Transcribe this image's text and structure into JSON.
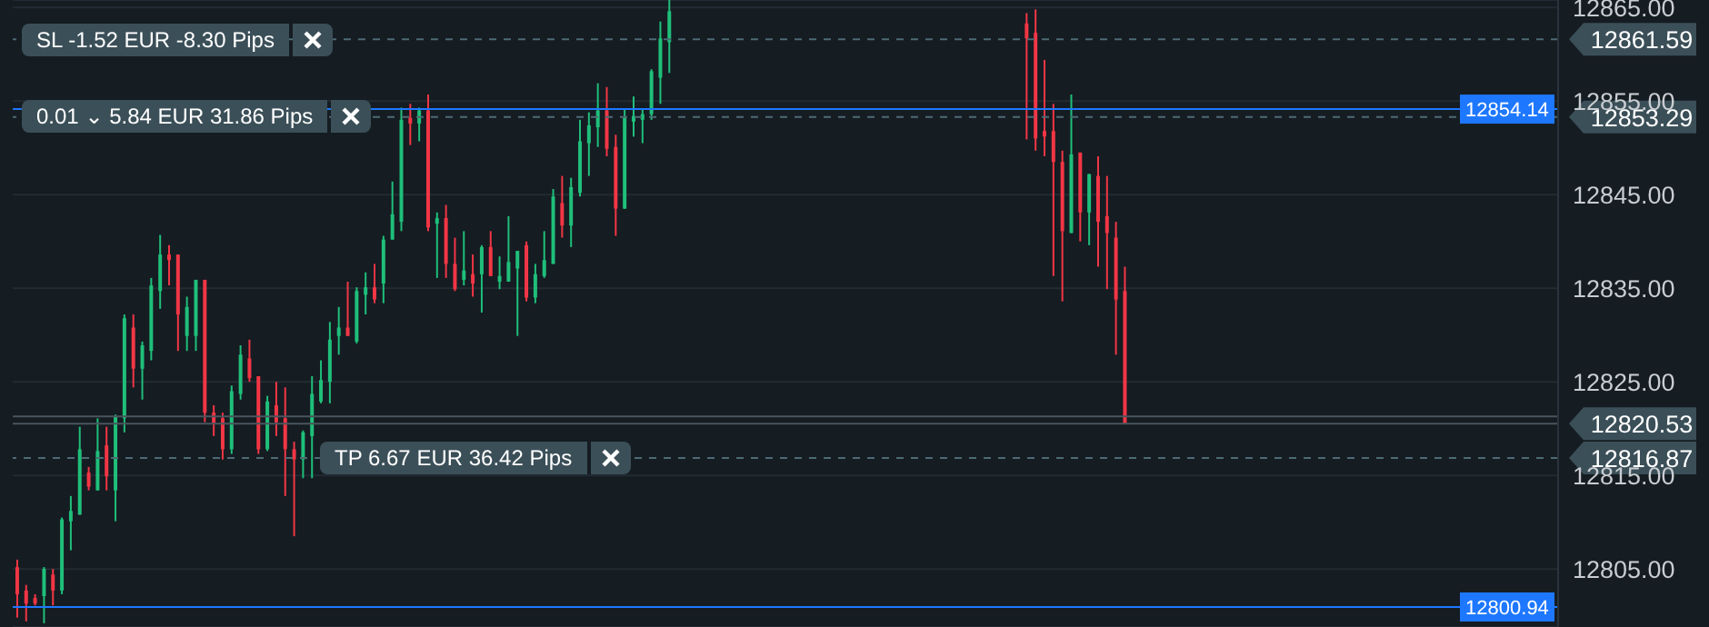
{
  "chart_data": {
    "type": "candlestick",
    "categories": [
      null,
      null,
      null,
      null,
      null,
      null,
      null,
      null,
      null,
      null,
      null,
      null,
      null,
      null,
      null,
      null,
      null,
      null,
      null,
      null,
      null,
      null,
      null,
      null,
      null,
      null,
      null,
      null,
      null,
      null,
      null,
      null,
      null,
      null,
      null,
      null,
      null,
      null,
      null,
      null,
      null,
      null,
      null,
      null,
      null,
      null,
      null,
      null,
      null,
      null,
      null,
      null,
      null,
      null,
      null,
      null,
      null,
      null,
      null,
      null,
      null,
      null,
      null,
      null,
      null,
      null,
      null,
      null,
      null,
      null,
      null,
      null,
      null,
      null,
      null,
      null,
      null,
      null,
      null,
      null,
      null,
      null,
      null,
      null,
      null,
      null,
      null,
      null,
      null,
      null,
      null,
      null,
      null,
      null,
      null,
      null,
      null,
      null,
      null,
      null,
      null,
      null,
      null,
      null,
      null,
      null,
      null,
      null,
      null,
      null,
      null,
      null,
      null,
      null,
      null,
      null,
      null,
      null,
      null,
      null,
      null,
      null,
      null,
      null,
      null,
      null,
      null,
      null,
      null,
      null,
      null,
      null,
      null,
      null,
      null,
      null,
      null,
      null,
      null,
      null,
      null,
      null,
      null,
      null,
      null,
      null,
      null,
      null,
      null,
      null,
      null,
      null,
      null,
      null,
      null,
      null,
      null,
      null,
      null,
      null,
      null,
      null,
      null,
      null,
      null,
      null,
      null,
      null,
      null,
      null,
      null,
      null,
      null
    ],
    "ohlc": [
      [
        12805.2,
        12806.0,
        12799.8,
        12802.3
      ],
      [
        12802.7,
        12803.3,
        12799.4,
        12801.3
      ],
      [
        12801.9,
        12802.3,
        12801.1,
        12801.3
      ],
      [
        12802.1,
        12805.2,
        12799.2,
        12805.0
      ],
      [
        12804.4,
        12805.0,
        12801.1,
        12802.7
      ],
      [
        12802.7,
        12810.5,
        12802.3,
        12810.3
      ],
      [
        12810.1,
        12812.8,
        12807.0,
        12811.2
      ],
      [
        12810.8,
        12820.2,
        12810.8,
        12817.8
      ],
      [
        12815.3,
        12815.9,
        12813.4,
        12813.8
      ],
      [
        12813.4,
        12821.1,
        12813.4,
        12817.6
      ],
      [
        12818.2,
        12820.2,
        12813.4,
        12814.9
      ],
      [
        12813.4,
        12821.5,
        12810.1,
        12821.3
      ],
      [
        12821.1,
        12832.2,
        12819.6,
        12831.8
      ],
      [
        12830.8,
        12832.2,
        12824.4,
        12826.4
      ],
      [
        12826.4,
        12829.3,
        12823.1,
        12828.9
      ],
      [
        12828.3,
        12836.1,
        12827.3,
        12835.3
      ],
      [
        12834.7,
        12840.7,
        12832.8,
        12838.6
      ],
      [
        12838.6,
        12839.6,
        12835.3,
        12838.0
      ],
      [
        12838.6,
        12838.6,
        12828.3,
        12832.2
      ],
      [
        12829.9,
        12834.1,
        12828.3,
        12833.0
      ],
      [
        12829.9,
        12835.9,
        12828.3,
        12835.9
      ],
      [
        12835.9,
        12835.9,
        12820.7,
        12821.7
      ],
      [
        12821.7,
        12822.5,
        12819.2,
        12820.6
      ],
      [
        12821.1,
        12821.7,
        12816.7,
        12817.8
      ],
      [
        12817.8,
        12824.6,
        12817.3,
        12824.0
      ],
      [
        12823.7,
        12828.9,
        12823.1,
        12827.9
      ],
      [
        12827.5,
        12829.5,
        12825.0,
        12825.4
      ],
      [
        12825.6,
        12825.6,
        12817.3,
        12817.8
      ],
      [
        12817.8,
        12823.5,
        12817.6,
        12822.9
      ],
      [
        12822.5,
        12825.0,
        12819.2,
        12820.7
      ],
      [
        12821.1,
        12824.4,
        12812.8,
        12817.8
      ],
      [
        12817.8,
        12818.6,
        12808.5,
        12816.7
      ],
      [
        12816.7,
        12819.8,
        12814.7,
        12819.6
      ],
      [
        12819.2,
        12825.6,
        12814.7,
        12823.7
      ],
      [
        12822.9,
        12827.3,
        12822.7,
        12825.2
      ],
      [
        12825.0,
        12831.4,
        12822.7,
        12829.5
      ],
      [
        12829.9,
        12833.0,
        12827.9,
        12830.8
      ],
      [
        12830.8,
        12835.7,
        12829.9,
        12829.9
      ],
      [
        12829.3,
        12835.1,
        12829.1,
        12834.7
      ],
      [
        12834.3,
        12836.7,
        12832.2,
        12835.1
      ],
      [
        12835.1,
        12837.6,
        12833.4,
        12833.8
      ],
      [
        12835.5,
        12840.6,
        12833.4,
        12840.2
      ],
      [
        12840.2,
        12846.4,
        12840.2,
        12842.9
      ],
      [
        12842.1,
        12854.3,
        12841.1,
        12853.0
      ],
      [
        12853.2,
        12854.7,
        12850.3,
        12852.6
      ],
      [
        12852.6,
        12854.3,
        12850.7,
        12854.0
      ],
      [
        12854.0,
        12855.7,
        12841.1,
        12841.5
      ],
      [
        12841.9,
        12843.1,
        12836.1,
        12842.5
      ],
      [
        12842.5,
        12843.9,
        12836.1,
        12837.6
      ],
      [
        12837.6,
        12840.4,
        12834.7,
        12834.9
      ],
      [
        12835.9,
        12841.1,
        12835.3,
        12836.9
      ],
      [
        12836.5,
        12838.6,
        12834.1,
        12835.5
      ],
      [
        12836.5,
        12839.6,
        12832.4,
        12839.4
      ],
      [
        12839.4,
        12841.1,
        12836.3,
        12836.3
      ],
      [
        12835.7,
        12838.4,
        12834.9,
        12836.3
      ],
      [
        12835.7,
        12842.7,
        12835.7,
        12837.8
      ],
      [
        12837.1,
        12839.0,
        12829.9,
        12839.0
      ],
      [
        12839.6,
        12840.0,
        12833.6,
        12834.0
      ],
      [
        12834.0,
        12837.6,
        12833.4,
        12836.5
      ],
      [
        12836.3,
        12841.1,
        12836.1,
        12838.0
      ],
      [
        12837.6,
        12845.6,
        12837.6,
        12844.8
      ],
      [
        12844.1,
        12847.0,
        12840.4,
        12841.7
      ],
      [
        12841.7,
        12846.8,
        12839.4,
        12845.8
      ],
      [
        12845.2,
        12853.0,
        12844.8,
        12850.7
      ],
      [
        12850.5,
        12853.8,
        12847.0,
        12852.4
      ],
      [
        12852.2,
        12856.9,
        12850.1,
        12854.0
      ],
      [
        12854.0,
        12856.5,
        12849.1,
        12849.9
      ],
      [
        12850.1,
        12851.4,
        12840.6,
        12843.5
      ],
      [
        12843.5,
        12854.2,
        12843.5,
        12853.2
      ],
      [
        12852.8,
        12855.5,
        12851.2,
        12853.4
      ],
      [
        12853.0,
        12854.2,
        12850.5,
        12853.6
      ],
      [
        12853.6,
        12858.4,
        12853.0,
        12858.2
      ],
      [
        12857.5,
        12863.5,
        12854.7,
        12861.7
      ],
      [
        12861.3,
        12865.8,
        12858.0,
        12864.6
      ],
      null,
      null,
      null,
      null,
      null,
      null,
      null,
      null,
      null,
      null,
      null,
      null,
      null,
      null,
      null,
      null,
      null,
      null,
      null,
      null,
      null,
      null,
      null,
      null,
      null,
      null,
      null,
      null,
      null,
      null,
      null,
      null,
      null,
      null,
      null,
      null,
      null,
      null,
      null,
      [
        12863.3,
        12864.4,
        12850.9,
        12861.7
      ],
      [
        12862.3,
        12864.8,
        12849.7,
        12851.0
      ],
      [
        12851.8,
        12859.4,
        12849.1,
        12851.2
      ],
      [
        12851.8,
        12854.7,
        12836.3,
        12848.5
      ],
      [
        12848.5,
        12849.7,
        12833.6,
        12841.1
      ],
      [
        12840.9,
        12855.7,
        12840.9,
        12849.3
      ],
      [
        12849.5,
        12849.5,
        12840.0,
        12843.1
      ],
      [
        12843.1,
        12847.2,
        12839.6,
        12847.2
      ],
      [
        12847.0,
        12849.1,
        12837.3,
        12842.1
      ],
      [
        12842.7,
        12847.0,
        12834.9,
        12840.9
      ],
      [
        12840.4,
        12842.1,
        12827.9,
        12833.8
      ],
      [
        12834.7,
        12837.3,
        12820.5,
        12820.5
      ],
      null,
      null,
      null,
      null,
      null,
      null,
      null,
      null,
      null,
      null,
      null,
      null,
      null,
      null,
      null,
      null,
      null,
      null,
      null,
      null,
      null,
      null,
      null,
      null,
      null,
      null,
      null,
      null,
      null,
      null,
      null,
      null,
      null,
      null,
      null,
      null,
      null,
      null,
      null,
      null,
      null,
      null,
      null,
      null,
      null,
      null,
      null,
      null
    ],
    "colors": [
      "#f23645",
      "#f23645",
      "#f23645",
      "#1fbf7a",
      "#f23645",
      "#1fbf7a",
      "#1fbf7a",
      "#1fbf7a",
      "#f23645",
      "#1fbf7a",
      "#f23645",
      "#1fbf7a",
      "#1fbf7a",
      "#f23645",
      "#1fbf7a",
      "#1fbf7a",
      "#1fbf7a",
      "#f23645",
      "#f23645",
      "#1fbf7a",
      "#1fbf7a",
      "#f23645",
      "#f23645",
      "#f23645",
      "#1fbf7a",
      "#1fbf7a",
      "#f23645",
      "#f23645",
      "#1fbf7a",
      "#f23645",
      "#f23645",
      "#f23645",
      "#1fbf7a",
      "#1fbf7a",
      "#1fbf7a",
      "#1fbf7a",
      "#1fbf7a",
      "#f23645",
      "#1fbf7a",
      "#1fbf7a",
      "#f23645",
      "#1fbf7a",
      "#1fbf7a",
      "#1fbf7a",
      "#f23645",
      "#1fbf7a",
      "#f23645",
      "#1fbf7a",
      "#f23645",
      "#f23645",
      "#1fbf7a",
      "#f23645",
      "#1fbf7a",
      "#f23645",
      "#1fbf7a",
      "#1fbf7a",
      "#1fbf7a",
      "#f23645",
      "#1fbf7a",
      "#1fbf7a",
      "#1fbf7a",
      "#f23645",
      "#1fbf7a",
      "#1fbf7a",
      "#1fbf7a",
      "#1fbf7a",
      "#f23645",
      "#f23645",
      "#1fbf7a",
      "#1fbf7a",
      "#1fbf7a",
      "#1fbf7a",
      "#1fbf7a",
      "#1fbf7a",
      null,
      null,
      null,
      null,
      null,
      null,
      null,
      null,
      null,
      null,
      null,
      null,
      null,
      null,
      null,
      null,
      null,
      null,
      null,
      null,
      null,
      null,
      null,
      null,
      null,
      null,
      null,
      null,
      null,
      null,
      null,
      null,
      null,
      null,
      null,
      null,
      null,
      null,
      null,
      "#f23645",
      "#f23645",
      "#f23645",
      "#f23645",
      "#f23645",
      "#1fbf7a",
      "#f23645",
      "#1fbf7a",
      "#f23645",
      "#f23645",
      "#f23645",
      "#f23645",
      null,
      null,
      null,
      null,
      null,
      null,
      null,
      null,
      null,
      null,
      null,
      null,
      null,
      null,
      null,
      null,
      null,
      null,
      null,
      null,
      null,
      null,
      null,
      null,
      null,
      null,
      null,
      null,
      null,
      null,
      null,
      null,
      null,
      null,
      null,
      null,
      null,
      null,
      null,
      null,
      null,
      null,
      null,
      null,
      null,
      null,
      null,
      null
    ],
    "ylim": [
      12798.8,
      12865.8
    ],
    "yticks": [
      {
        "value": 12805,
        "label": "12805.00"
      },
      {
        "value": 12815,
        "label": "12815.00"
      },
      {
        "value": 12825,
        "label": "12825.00"
      },
      {
        "value": 12835,
        "label": "12835.00"
      },
      {
        "value": 12845,
        "label": "12845.00"
      },
      {
        "value": 12855,
        "label": "12855.00"
      },
      {
        "value": 12865,
        "label": "12865.00"
      }
    ],
    "tick_labels": "y",
    "grid": "y",
    "ref_lines": [
      {
        "axis": "y",
        "value": 12861.59,
        "label": "12861.59",
        "color": "#4d6a74",
        "line_style": "dashed"
      },
      {
        "axis": "y",
        "value": 12854.14,
        "label": "12854.14",
        "color": "#1e78ff",
        "line_style": "solid"
      },
      {
        "axis": "y",
        "value": 12853.29,
        "label": "12853.29",
        "color": "#4d6a74",
        "line_style": "dashed"
      },
      {
        "axis": "y",
        "value": 12821.3,
        "color": "#4a555e",
        "line_style": "solid"
      },
      {
        "axis": "y",
        "value": 12820.53,
        "label": "12820.53",
        "color": "#4a555e",
        "line_style": "solid"
      },
      {
        "axis": "y",
        "value": 12816.87,
        "label": "12816.87",
        "color": "#4d6a74",
        "line_style": "dashed"
      },
      {
        "axis": "y",
        "value": 12800.94,
        "label": "12800.94",
        "color": "#1e78ff",
        "line_style": "solid"
      }
    ],
    "annotations": [
      {
        "text": "SL -1.52 EUR -8.30 Pips",
        "y": 12861.59
      },
      {
        "text": "0.01 ⌄ 5.84 EUR 31.86 Pips",
        "y": 12853.29
      },
      {
        "text": "TP 6.67 EUR 36.42 Pips",
        "y": 12816.87
      }
    ]
  }
}
